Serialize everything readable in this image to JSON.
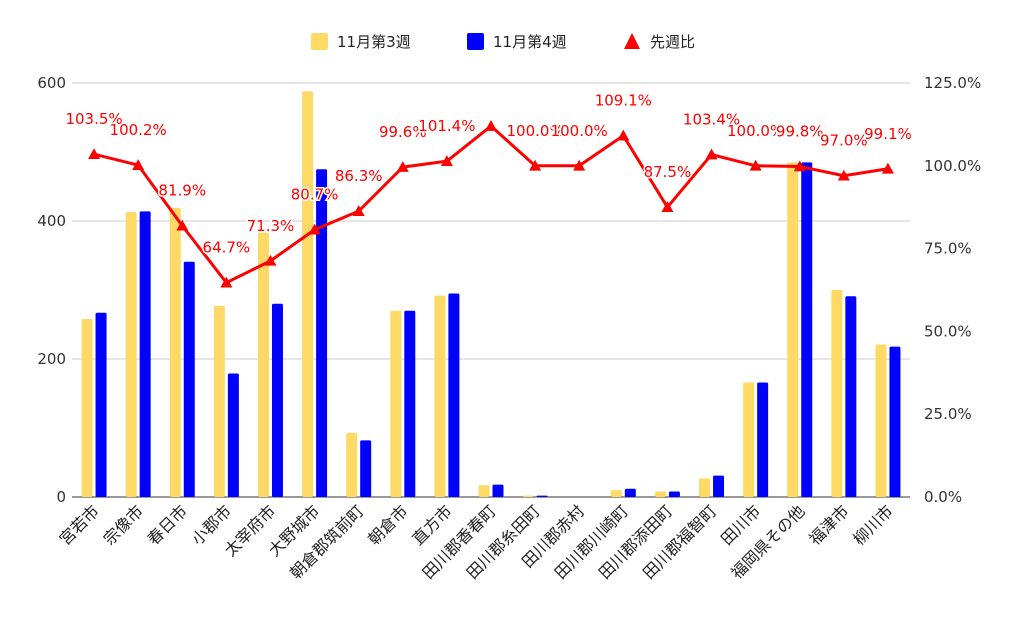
{
  "chart_data": {
    "type": "bar",
    "categories": [
      "宮若市",
      "宗像市",
      "春日市",
      "小郡市",
      "太宰府市",
      "大野城市",
      "朝倉郡筑前町",
      "朝倉市",
      "直方市",
      "田川郡香春町",
      "田川郡糸田町",
      "田川郡赤村",
      "田川郡川崎町",
      "田川郡添田町",
      "田川郡福智町",
      "田川市",
      "福岡県その他",
      "福津市",
      "柳川市"
    ],
    "series": [
      {
        "name": "11月第3週",
        "axis": "left",
        "color": "#ffd966",
        "values": [
          258,
          413,
          419,
          277,
          383,
          588,
          93,
          270,
          292,
          17,
          2,
          0,
          10,
          8,
          27,
          166,
          485,
          300,
          221
        ]
      },
      {
        "name": "11月第4週",
        "axis": "left",
        "color": "#0000ff",
        "values": [
          267,
          414,
          341,
          179,
          280,
          475,
          82,
          270,
          295,
          18,
          2,
          0,
          12,
          8,
          31,
          166,
          485,
          291,
          218
        ]
      }
    ],
    "line_series": {
      "name": "先週比",
      "axis": "right",
      "color": "#ff0000",
      "marker": "triangle",
      "values": [
        103.5,
        100.2,
        81.9,
        64.7,
        71.3,
        80.7,
        86.3,
        99.6,
        101.4,
        112.0,
        100.0,
        100.0,
        109.1,
        87.5,
        103.4,
        100.0,
        99.8,
        97.0,
        99.1
      ],
      "labels": [
        "103.5%",
        "100.2%",
        "81.9%",
        "64.7%",
        "71.3%",
        "80.7%",
        "86.3%",
        "99.6%",
        "101.4%",
        "",
        "100.0%",
        "100.0%",
        "109.1%",
        "87.5%",
        "103.4%",
        "100.0%",
        "99.8%",
        "97.0%",
        "99.1%"
      ]
    },
    "left_axis": {
      "ylim": [
        0,
        600
      ],
      "ticks": [
        "0",
        "200",
        "400",
        "600"
      ]
    },
    "right_axis": {
      "ylim": [
        0,
        125
      ],
      "ticks": [
        "0.0%",
        "25.0%",
        "50.0%",
        "75.0%",
        "100.0%",
        "125.0%"
      ]
    },
    "legend_position": "top",
    "grid": true
  }
}
